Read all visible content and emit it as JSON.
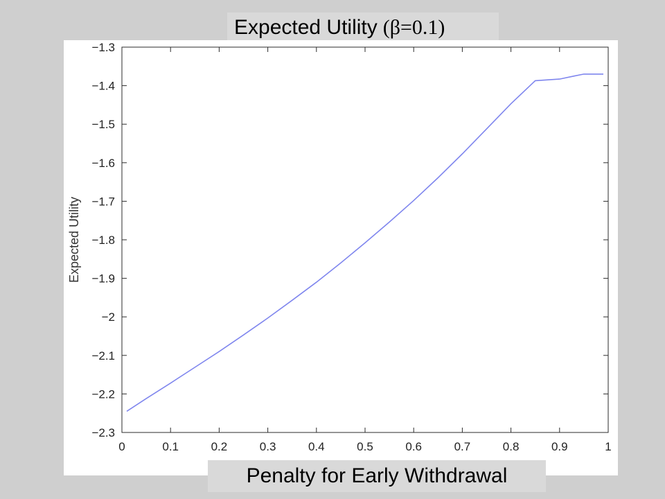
{
  "slide": {
    "title_main": "Expected Utility",
    "title_beta": "(β=0.1)",
    "xlabel": "Penalty for Early Withdrawal"
  },
  "chart_data": {
    "type": "line",
    "title": "Expected Utility (β=0.1)",
    "xlabel": "Penalty for Early Withdrawal",
    "ylabel": "Expected Utility",
    "xlim": [
      0,
      1
    ],
    "ylim": [
      -2.3,
      -1.3
    ],
    "x_ticks": [
      "0",
      "0.1",
      "0.2",
      "0.3",
      "0.4",
      "0.5",
      "0.6",
      "0.7",
      "0.8",
      "0.9",
      "1"
    ],
    "y_ticks": [
      "−1.3",
      "−1.4",
      "−1.5",
      "−1.6",
      "−1.7",
      "−1.8",
      "−1.9",
      "−2",
      "−2.1",
      "−2.2",
      "−2.3"
    ],
    "grid": false,
    "line_color": "#7f86ee",
    "series": [
      {
        "x": [
          0.01,
          0.05,
          0.1,
          0.15,
          0.2,
          0.25,
          0.3,
          0.35,
          0.4,
          0.45,
          0.5,
          0.55,
          0.6,
          0.65,
          0.7,
          0.75,
          0.8,
          0.85,
          0.9,
          0.93,
          0.95,
          0.97,
          0.99
        ],
        "values": [
          -2.245,
          -2.212,
          -2.172,
          -2.131,
          -2.09,
          -2.047,
          -2.003,
          -1.957,
          -1.91,
          -1.86,
          -1.808,
          -1.754,
          -1.698,
          -1.639,
          -1.577,
          -1.512,
          -1.447,
          -1.387,
          -1.383,
          -1.375,
          -1.37,
          -1.37,
          -1.37
        ]
      }
    ]
  }
}
